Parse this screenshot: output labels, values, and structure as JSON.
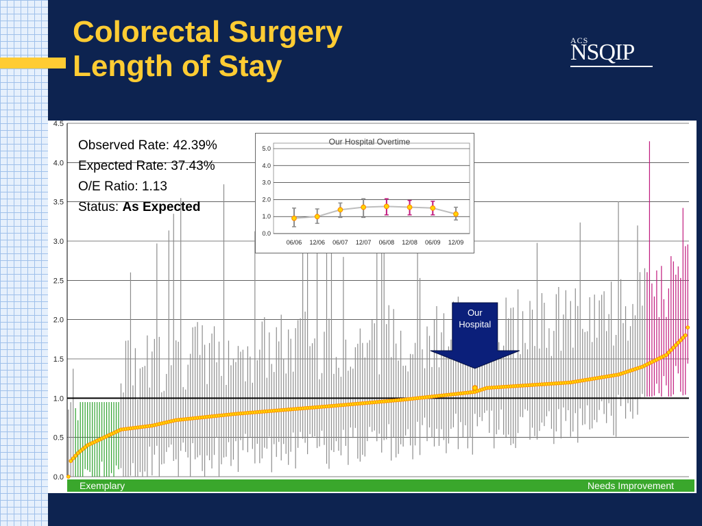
{
  "slide": {
    "title_line1": "Colorectal Surgery",
    "title_line2": "Length of Stay"
  },
  "logo": {
    "small": "ACS",
    "big": "NSQIP"
  },
  "stats": {
    "observed_label": "Observed Rate:",
    "observed_value": "42.39%",
    "expected_label": "Expected Rate:",
    "expected_value": "37.43%",
    "oe_label": "O/E Ratio:",
    "oe_value": "1.13",
    "status_label": "Status:",
    "status_value": "As Expected"
  },
  "colors": {
    "background": "#0d2350",
    "title": "#ffcc33",
    "band": "#3aa72c",
    "exemplary_ci": "#2ca02c",
    "needs_improvement_ci": "#c0187c",
    "ci_default": "#8c8c8c",
    "point": "#ff8c00",
    "point_fill": "#ffd700",
    "arrow": "#0b1f7a"
  },
  "chart_data": [
    {
      "type": "scatter",
      "description_labels": {
        "left_band": "Exemplary",
        "right_band": "Needs Improvement",
        "annotation": "Our Hospital"
      },
      "ylim": [
        0,
        4.5
      ],
      "yticks": [
        "0.0",
        "0.5",
        "1.0",
        "1.5",
        "2.0",
        "2.5",
        "3.0",
        "3.5",
        "4.0",
        "4.5"
      ],
      "reference_line": 1.0,
      "n_hospitals": 260,
      "our_hospital_rank": 170,
      "our_hospital_value": 1.13,
      "our_hospital_ci": [
        0.8,
        1.55
      ],
      "oe_curve_knots": [
        [
          0,
          0.0
        ],
        [
          1,
          0.2
        ],
        [
          4,
          0.3
        ],
        [
          8,
          0.4
        ],
        [
          15,
          0.5
        ],
        [
          22,
          0.6
        ],
        [
          35,
          0.65
        ],
        [
          45,
          0.72
        ],
        [
          70,
          0.8
        ],
        [
          110,
          0.9
        ],
        [
          140,
          0.98
        ],
        [
          170,
          1.08
        ],
        [
          175,
          1.13
        ],
        [
          210,
          1.2
        ],
        [
          230,
          1.3
        ],
        [
          240,
          1.4
        ],
        [
          250,
          1.55
        ],
        [
          258,
          1.8
        ],
        [
          260,
          2.0
        ]
      ],
      "exemplary_count": 22,
      "needs_improvement_count": 18
    },
    {
      "type": "line",
      "title": "Our Hospital Overtime",
      "categories": [
        "06/06",
        "12/06",
        "06/07",
        "12/07",
        "06/08",
        "12/08",
        "06/09",
        "12/09"
      ],
      "values": [
        0.9,
        1.0,
        1.4,
        1.55,
        1.6,
        1.55,
        1.5,
        1.15
      ],
      "ci_low": [
        0.4,
        0.6,
        0.95,
        0.95,
        1.1,
        1.1,
        1.1,
        0.8
      ],
      "ci_high": [
        1.5,
        1.45,
        1.8,
        2.05,
        2.05,
        1.95,
        1.9,
        1.55
      ],
      "ci_colors": [
        "#8c8c8c",
        "#8c8c8c",
        "#8c8c8c",
        "#8c8c8c",
        "#c0187c",
        "#c0187c",
        "#c0187c",
        "#8c8c8c"
      ],
      "ylim": [
        0,
        5
      ],
      "yticks": [
        "0.0",
        "1.0",
        "2.0",
        "3.0",
        "4.0",
        "5.0"
      ]
    }
  ]
}
